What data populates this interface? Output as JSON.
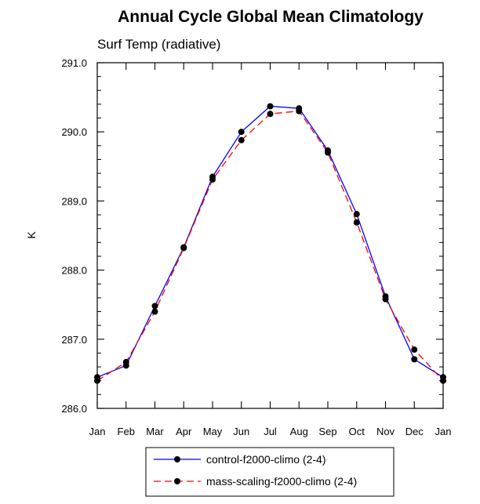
{
  "chart_data": {
    "type": "line",
    "title": "Annual Cycle Global Mean Climatology",
    "subtitle": "Surf Temp (radiative)",
    "xlabel": "",
    "ylabel": "K",
    "categories": [
      "Jan",
      "Feb",
      "Mar",
      "Apr",
      "May",
      "Jun",
      "Jul",
      "Aug",
      "Sep",
      "Oct",
      "Nov",
      "Dec",
      "Jan"
    ],
    "ylim": [
      286.0,
      291.0
    ],
    "yticks": [
      "286.0",
      "287.0",
      "288.0",
      "289.0",
      "290.0",
      "291.0"
    ],
    "grid": false,
    "legend_position": "bottom-center",
    "series": [
      {
        "name": "control-f2000-climo (2-4)",
        "color": "#0000ff",
        "style": "solid",
        "values": [
          286.45,
          286.62,
          287.48,
          288.33,
          289.35,
          290.0,
          290.37,
          290.34,
          289.73,
          288.81,
          287.62,
          286.71,
          286.45
        ]
      },
      {
        "name": "mass-scaling-f2000-climo (2-4)",
        "color": "#ff0000",
        "style": "dashed",
        "values": [
          286.4,
          286.67,
          287.4,
          288.32,
          289.31,
          289.88,
          290.26,
          290.3,
          289.7,
          288.69,
          287.58,
          286.85,
          286.4
        ]
      }
    ]
  }
}
